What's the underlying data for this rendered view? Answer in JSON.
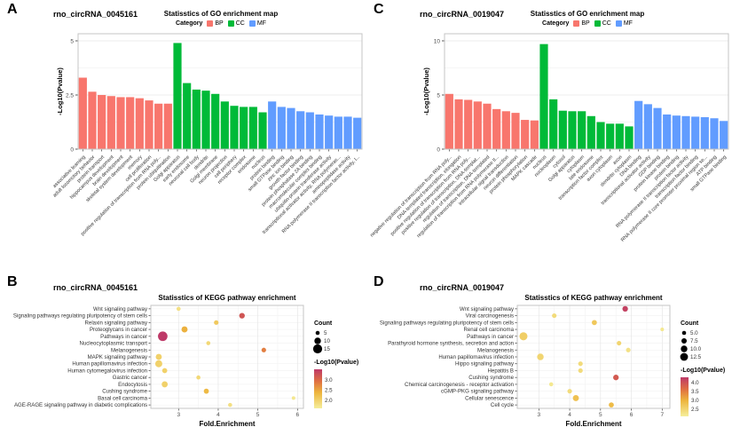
{
  "colors": {
    "bp": "#F8766D",
    "cc": "#00BA38",
    "mf": "#619CFF",
    "gradient_low": "#F5EE9B",
    "gradient_mid1": "#EDB63E",
    "gradient_mid2": "#DF6E42",
    "gradient_high": "#BE3A68",
    "axis_text": "#4d4d4d",
    "label_text": "#333333",
    "grid_major": "#e6e6e6",
    "grid_minor": "#f2f2f2",
    "panel_border": "#c4c4c4"
  },
  "chart_data": [
    {
      "id": "A",
      "type": "bar",
      "panel_letter": "A",
      "sample": "rno_circRNA_0045161",
      "title": "Statisstics of GO enrichment map",
      "legend_title": "Category",
      "ylabel": "-Log10(Pvalue)",
      "ylim": [
        0,
        5
      ],
      "yticks": [
        "0",
        "2.5",
        "5"
      ],
      "ytick_values": [
        0,
        2.5,
        5
      ],
      "series": [
        {
          "name": "BP",
          "color_key": "bp",
          "categories": [
            "associative learning",
            "adult locomotory behavior",
            "protein transport",
            "hippocampus development",
            "brain development",
            "skeletal system development",
            "memory",
            "cell proliferation",
            "positive regulation of transcription from RNA poly...",
            "protein ubiquitination"
          ],
          "values": [
            3.3,
            2.65,
            2.5,
            2.45,
            2.4,
            2.4,
            2.35,
            2.25,
            2.1,
            2.1
          ]
        },
        {
          "name": "CC",
          "color_key": "cc",
          "categories": [
            "Golgi apparatus",
            "early endosome",
            "neuronal cell body",
            "dendrite",
            "Golgi membrane",
            "neuron projection",
            "cell periphery",
            "receptor complex",
            "endosome",
            "nucleus"
          ],
          "values": [
            4.9,
            3.05,
            2.75,
            2.7,
            2.55,
            2.2,
            2.0,
            1.95,
            1.95,
            1.7
          ]
        },
        {
          "name": "MF",
          "color_key": "mf",
          "categories": [
            "protein binding",
            "small GTPase binding",
            "zinc ion binding",
            "growth factor binding",
            "protein phosphatase 2A binding",
            "macromolecular complex binding",
            "ubiquitin-protein transferase activity",
            "transcriptional activator activity, RNA polymeras...",
            "aminopeptidase activity",
            "RNA polymerase II transcription factor activity, l..."
          ],
          "values": [
            2.2,
            1.95,
            1.9,
            1.75,
            1.7,
            1.6,
            1.55,
            1.5,
            1.5,
            1.45
          ]
        }
      ]
    },
    {
      "id": "B",
      "type": "scatter",
      "panel_letter": "B",
      "sample": "rno_circRNA_0045161",
      "title": "Statisstics of KEGG pathway enrichment",
      "xlabel": "Fold.Enrichment",
      "xlim": [
        2.3,
        6.15
      ],
      "xticks": [
        "3",
        "4",
        "5",
        "6"
      ],
      "xtick_values": [
        3,
        4,
        5,
        6
      ],
      "count_legend_title": "Count",
      "count_legend": [
        {
          "label": "5",
          "value": 5
        },
        {
          "label": "10",
          "value": 10
        },
        {
          "label": "15",
          "value": 15
        }
      ],
      "color_legend_title": "-Log10(Pvalue)",
      "color_legend": [
        {
          "label": "3.0",
          "value": 3.0
        },
        {
          "label": "2.5",
          "value": 2.5
        },
        {
          "label": "2.0",
          "value": 2.0
        }
      ],
      "color_domain": [
        1.6,
        3.5
      ],
      "points": [
        {
          "pathway": "Wnt signaling pathway",
          "fold": 3.0,
          "count": 5,
          "logp": 1.8
        },
        {
          "pathway": "Signaling pathways regulating pluripotency of stem cells",
          "fold": 4.6,
          "count": 8,
          "logp": 3.2
        },
        {
          "pathway": "Relaxin signaling pathway",
          "fold": 3.95,
          "count": 6,
          "logp": 2.1
        },
        {
          "pathway": "Proteoglycans in cancer",
          "fold": 3.15,
          "count": 9,
          "logp": 2.4
        },
        {
          "pathway": "Pathways in cancer",
          "fold": 2.6,
          "count": 16,
          "logp": 3.5
        },
        {
          "pathway": "Nucleocytoplasmic transport",
          "fold": 3.75,
          "count": 5,
          "logp": 1.9
        },
        {
          "pathway": "Melanogenesis",
          "fold": 5.15,
          "count": 6,
          "logp": 2.8
        },
        {
          "pathway": "MAPK signaling pathway",
          "fold": 2.5,
          "count": 9,
          "logp": 2.0
        },
        {
          "pathway": "Human papillomavirus infection",
          "fold": 2.5,
          "count": 11,
          "logp": 2.0
        },
        {
          "pathway": "Human cytomegalovirus infection",
          "fold": 2.65,
          "count": 7,
          "logp": 2.0
        },
        {
          "pathway": "Gastric cancer",
          "fold": 3.5,
          "count": 5,
          "logp": 1.9
        },
        {
          "pathway": "Endocytosis",
          "fold": 2.65,
          "count": 9,
          "logp": 2.0
        },
        {
          "pathway": "Cushing syndrome",
          "fold": 3.7,
          "count": 7,
          "logp": 2.3
        },
        {
          "pathway": "Basal cell carcinoma",
          "fold": 5.9,
          "count": 4,
          "logp": 1.7
        },
        {
          "pathway": "AGE-RAGE signaling pathway in diabetic complications",
          "fold": 4.3,
          "count": 5,
          "logp": 1.8
        }
      ]
    },
    {
      "id": "C",
      "type": "bar",
      "panel_letter": "C",
      "sample": "rno_circRNA_0019047",
      "title": "Statisstics of GO enrichment map",
      "legend_title": "Category",
      "ylabel": "-Log10(Pvalue)",
      "ylim": [
        0,
        10
      ],
      "yticks": [
        "0",
        "5",
        "10"
      ],
      "ytick_values": [
        0,
        5,
        10
      ],
      "series": [
        {
          "name": "BP",
          "color_key": "bp",
          "categories": [
            "negative regulation of transcription from RNA poly...",
            "DNA-templated transcription, elongation",
            "positive regulation of transcription from RNA poly...",
            "positive regulation of transcription, DNA-templat...",
            "regulation of transcription, DNA-templated",
            "regulation of transcription from RNA polymerase II...",
            "intracellular signal transduction",
            "neuron differentiation",
            "protein phosphorylation",
            "MAPK cascade"
          ],
          "values": [
            5.1,
            4.6,
            4.55,
            4.4,
            4.2,
            3.7,
            3.5,
            3.35,
            2.7,
            2.65
          ]
        },
        {
          "name": "CC",
          "color_key": "cc",
          "categories": [
            "nucleus",
            "nucleoplasm",
            "cytosol",
            "Golgi apparatus",
            "cytoplasm",
            "late endosome",
            "transcription factor complex",
            "axon cytoplasm",
            "axon",
            "dendrite cytoplasm"
          ],
          "values": [
            9.7,
            4.6,
            3.55,
            3.5,
            3.5,
            3.05,
            2.5,
            2.35,
            2.35,
            2.1
          ]
        },
        {
          "name": "MF",
          "color_key": "mf",
          "categories": [
            "DNA binding",
            "transcriptional activator activity",
            "GDP binding",
            "protein kinase binding",
            "protein binding",
            "RNA polymerase II transcription factor activity",
            "transcription factor binding",
            "RNA polymerase II core promoter proximal region se...",
            "ATP binding",
            "small GTPase binding"
          ],
          "values": [
            4.45,
            4.15,
            3.8,
            3.2,
            3.1,
            3.05,
            3.0,
            2.95,
            2.85,
            2.6
          ]
        }
      ]
    },
    {
      "id": "D",
      "type": "scatter",
      "panel_letter": "D",
      "sample": "rno_circRNA_0019047",
      "title": "Statisstics of KEGG pathway enrichment",
      "xlabel": "Fold.Enrichment",
      "xlim": [
        2.3,
        7.25
      ],
      "xticks": [
        "3",
        "4",
        "5",
        "6",
        "7"
      ],
      "xtick_values": [
        3,
        4,
        5,
        6,
        7
      ],
      "count_legend_title": "Count",
      "count_legend": [
        {
          "label": "5.0",
          "value": 5
        },
        {
          "label": "7.5",
          "value": 7.5
        },
        {
          "label": "10.0",
          "value": 10
        },
        {
          "label": "12.5",
          "value": 12.5
        }
      ],
      "color_legend_title": "-Log10(Pvalue)",
      "color_legend": [
        {
          "label": "4.0",
          "value": 4.0
        },
        {
          "label": "3.5",
          "value": 3.5
        },
        {
          "label": "3.0",
          "value": 3.0
        },
        {
          "label": "2.5",
          "value": 2.5
        }
      ],
      "color_domain": [
        2.1,
        4.3
      ],
      "points": [
        {
          "pathway": "Wnt signaling pathway",
          "fold": 5.8,
          "count": 8,
          "logp": 4.2
        },
        {
          "pathway": "Viral carcinogenesis",
          "fold": 3.5,
          "count": 6,
          "logp": 2.4
        },
        {
          "pathway": "Signaling pathways regulating pluripotency of stem cells",
          "fold": 4.8,
          "count": 7,
          "logp": 2.7
        },
        {
          "pathway": "Renal cell carcinoma",
          "fold": 7.0,
          "count": 4,
          "logp": 2.2
        },
        {
          "pathway": "Pathways in cancer",
          "fold": 2.5,
          "count": 13,
          "logp": 2.6
        },
        {
          "pathway": "Parathyroid hormone synthesis, secretion and action",
          "fold": 5.6,
          "count": 6,
          "logp": 2.5
        },
        {
          "pathway": "Melanogenesis",
          "fold": 5.9,
          "count": 6,
          "logp": 2.3
        },
        {
          "pathway": "Human papillomavirus infection",
          "fold": 3.05,
          "count": 10,
          "logp": 2.5
        },
        {
          "pathway": "Hippo signaling pathway",
          "fold": 4.35,
          "count": 6,
          "logp": 2.4
        },
        {
          "pathway": "Hepatitis B",
          "fold": 4.35,
          "count": 6,
          "logp": 2.4
        },
        {
          "pathway": "Cushing syndrome",
          "fold": 5.5,
          "count": 8,
          "logp": 3.9
        },
        {
          "pathway": "Chemical carcinogenesis - receptor activation",
          "fold": 3.4,
          "count": 5,
          "logp": 2.2
        },
        {
          "pathway": "cGMP-PKG signaling pathway",
          "fold": 4.0,
          "count": 6,
          "logp": 2.4
        },
        {
          "pathway": "Cellular senescence",
          "fold": 4.2,
          "count": 9,
          "logp": 2.8
        },
        {
          "pathway": "Cell cycle",
          "fold": 5.35,
          "count": 7,
          "logp": 2.9
        }
      ]
    }
  ]
}
